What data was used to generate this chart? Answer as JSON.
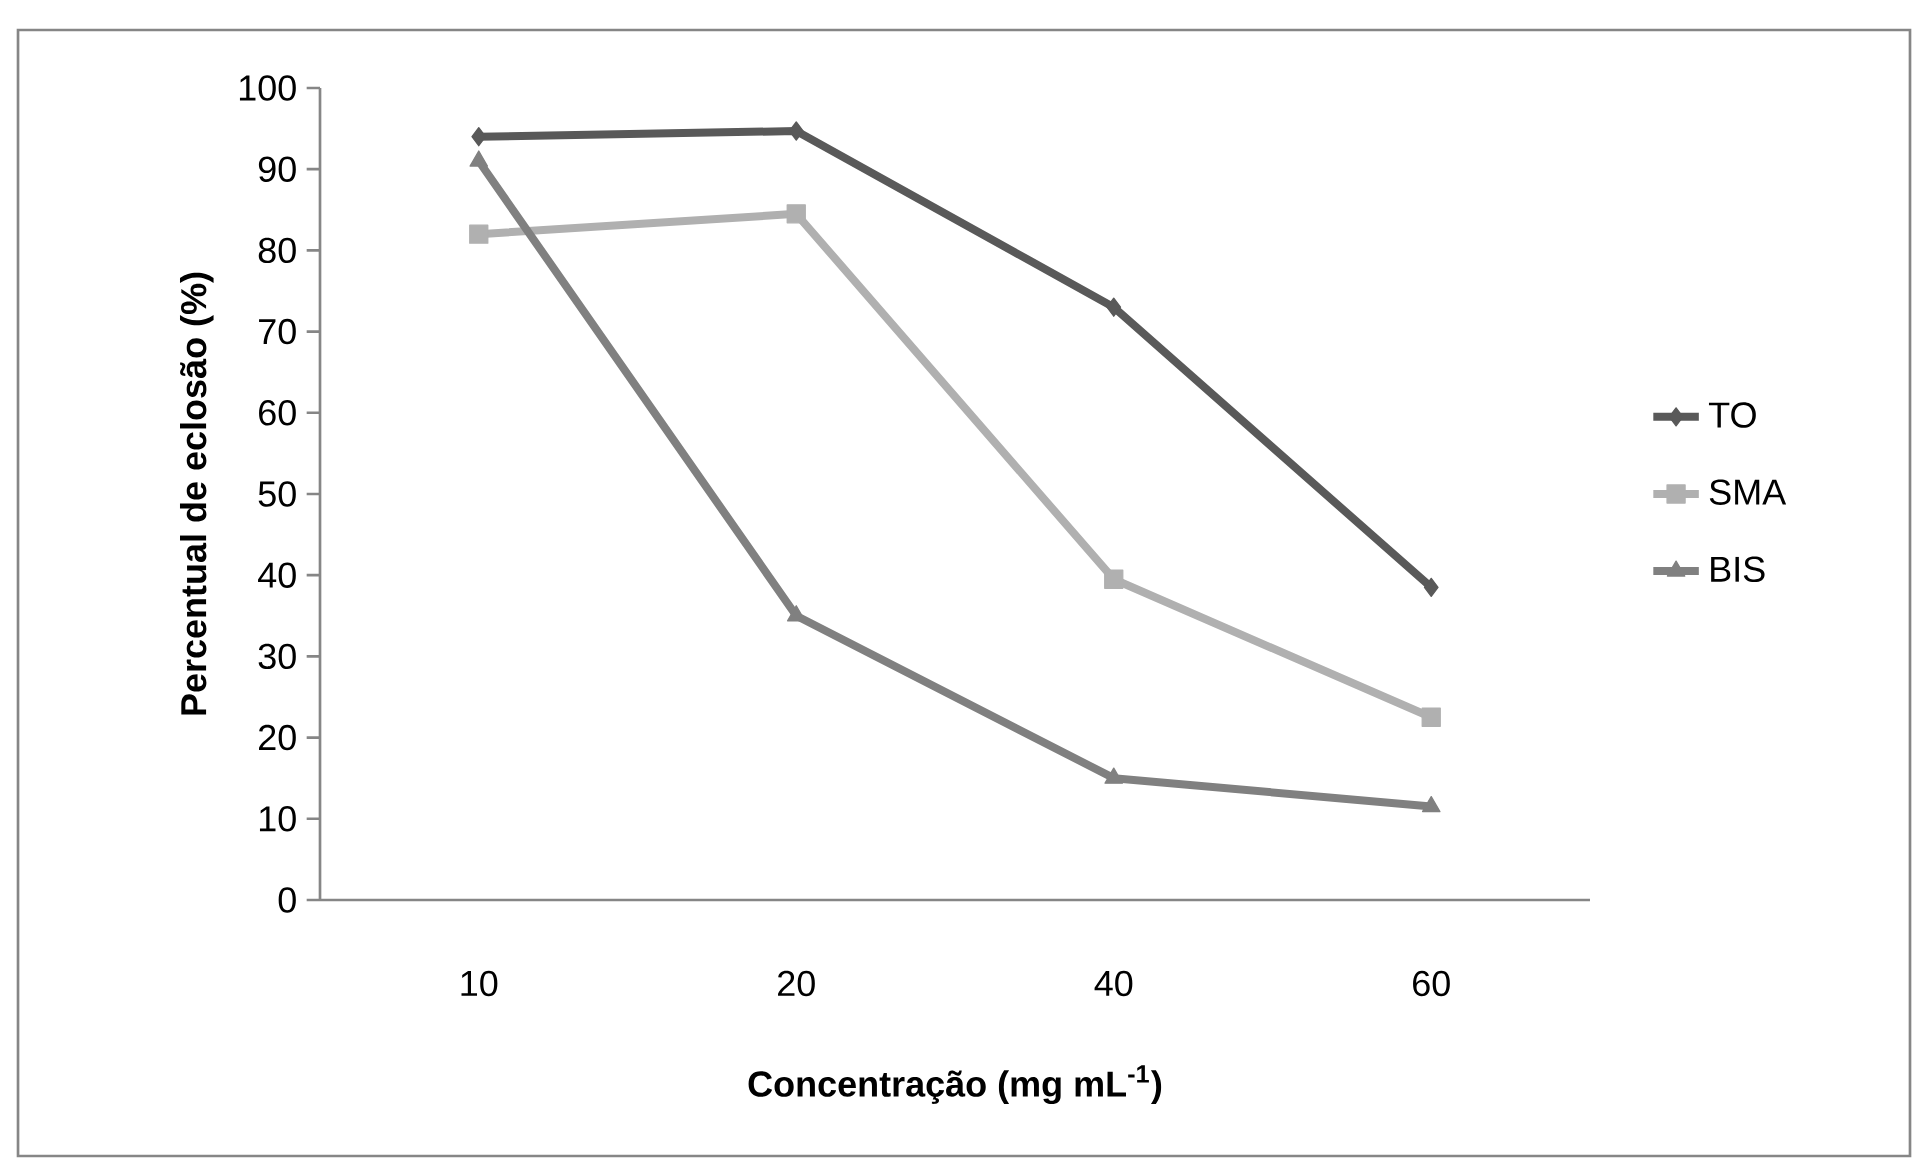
{
  "chart_data": {
    "type": "line",
    "xlabel": "Concentração (mg mL$^{-1}$)",
    "ylabel": "Percentual de eclosão (%)",
    "categories": [
      "10",
      "20",
      "40",
      "60"
    ],
    "series": [
      {
        "name": "TO",
        "color": "#595959",
        "marker": "diamond",
        "values": [
          94,
          94.7,
          73,
          38.5
        ]
      },
      {
        "name": "SMA",
        "color": "#b0b0b0",
        "marker": "square",
        "values": [
          82,
          84.5,
          39.5,
          22.5
        ]
      },
      {
        "name": "BIS",
        "color": "#808080",
        "marker": "triangle",
        "values": [
          91,
          35,
          15,
          11.5
        ]
      }
    ],
    "ylim": [
      0,
      100
    ],
    "yticks": [
      0,
      10,
      20,
      30,
      40,
      50,
      60,
      70,
      80,
      90,
      100
    ],
    "grid": false,
    "legend": "right",
    "line_style": "solid"
  }
}
